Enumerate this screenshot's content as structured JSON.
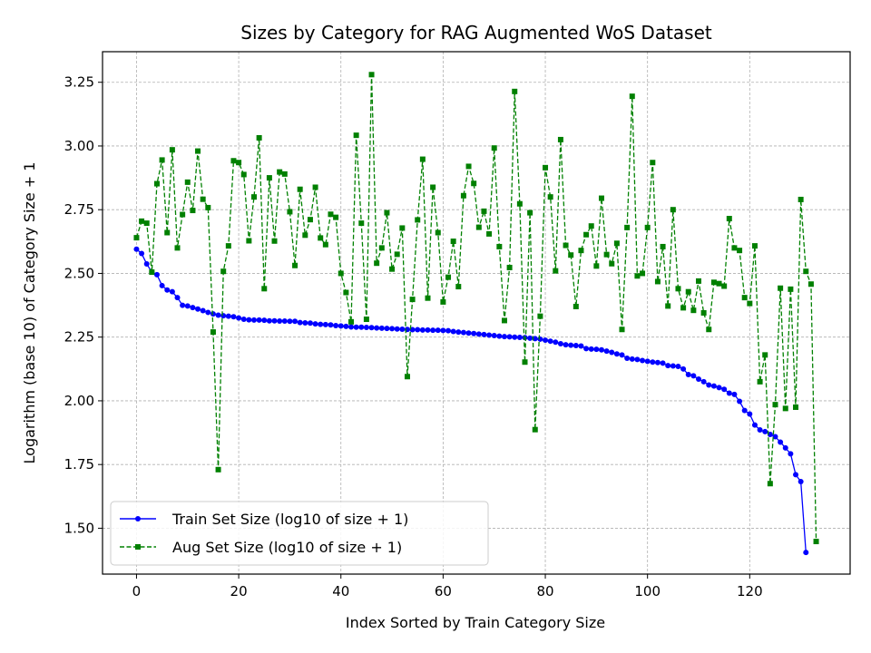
{
  "chart_data": {
    "type": "line",
    "title": "Sizes by Category for RAG Augmented WoS Dataset",
    "xlabel": "Index Sorted by Train Category Size",
    "ylabel": "Logarithm (base 10) of Category Size + 1",
    "xlim": [
      -6.65,
      139.65
    ],
    "ylim": [
      1.32,
      3.37
    ],
    "xticks": [
      0,
      20,
      40,
      60,
      80,
      100,
      120
    ],
    "xtick_labels": [
      "0",
      "20",
      "40",
      "60",
      "80",
      "100",
      "120"
    ],
    "yticks": [
      1.5,
      1.75,
      2.0,
      2.25,
      2.5,
      2.75,
      3.0,
      3.25
    ],
    "ytick_labels": [
      "1.50",
      "1.75",
      "2.00",
      "2.25",
      "2.50",
      "2.75",
      "3.00",
      "3.25"
    ],
    "grid": true,
    "legend_position": "lower-left",
    "series": [
      {
        "name": "Train Set Size (log10 of size + 1)",
        "color": "#0000ff",
        "line_style": "solid",
        "marker": "circle",
        "values": [
          2.595,
          2.578,
          2.537,
          2.505,
          2.495,
          2.452,
          2.435,
          2.428,
          2.405,
          2.375,
          2.372,
          2.366,
          2.36,
          2.354,
          2.347,
          2.341,
          2.336,
          2.334,
          2.332,
          2.33,
          2.325,
          2.32,
          2.318,
          2.317,
          2.317,
          2.316,
          2.314,
          2.314,
          2.313,
          2.313,
          2.312,
          2.312,
          2.307,
          2.306,
          2.305,
          2.302,
          2.3,
          2.299,
          2.298,
          2.295,
          2.294,
          2.292,
          2.29,
          2.289,
          2.289,
          2.288,
          2.287,
          2.286,
          2.285,
          2.284,
          2.283,
          2.282,
          2.281,
          2.28,
          2.279,
          2.279,
          2.278,
          2.278,
          2.277,
          2.277,
          2.276,
          2.275,
          2.272,
          2.27,
          2.268,
          2.266,
          2.264,
          2.262,
          2.26,
          2.258,
          2.256,
          2.254,
          2.252,
          2.251,
          2.25,
          2.249,
          2.248,
          2.246,
          2.244,
          2.242,
          2.238,
          2.234,
          2.23,
          2.224,
          2.22,
          2.218,
          2.217,
          2.215,
          2.205,
          2.203,
          2.202,
          2.2,
          2.195,
          2.19,
          2.184,
          2.18,
          2.167,
          2.164,
          2.162,
          2.158,
          2.155,
          2.152,
          2.15,
          2.148,
          2.138,
          2.137,
          2.135,
          2.125,
          2.103,
          2.098,
          2.085,
          2.075,
          2.062,
          2.058,
          2.052,
          2.045,
          2.03,
          2.025,
          1.998,
          1.962,
          1.948,
          1.905,
          1.886,
          1.879,
          1.868,
          1.859,
          1.838,
          1.815,
          1.792,
          1.71,
          1.683,
          1.405
        ]
      },
      {
        "name": "Aug Set Size (log10 of size + 1)",
        "color": "#008000",
        "line_style": "dashed",
        "marker": "square",
        "values": [
          2.64,
          2.705,
          2.697,
          2.505,
          2.852,
          2.945,
          2.66,
          2.985,
          2.6,
          2.731,
          2.858,
          2.747,
          2.98,
          2.791,
          2.758,
          2.27,
          1.73,
          2.508,
          2.608,
          2.942,
          2.935,
          2.888,
          2.628,
          2.8,
          3.032,
          2.44,
          2.875,
          2.627,
          2.898,
          2.89,
          2.742,
          2.531,
          2.83,
          2.65,
          2.711,
          2.838,
          2.639,
          2.613,
          2.732,
          2.72,
          2.5,
          2.425,
          2.31,
          3.042,
          2.697,
          2.32,
          3.28,
          2.54,
          2.6,
          2.738,
          2.517,
          2.575,
          2.678,
          2.095,
          2.398,
          2.71,
          2.948,
          2.403,
          2.838,
          2.66,
          2.388,
          2.485,
          2.626,
          2.448,
          2.805,
          2.92,
          2.853,
          2.681,
          2.744,
          2.655,
          2.992,
          2.605,
          2.315,
          2.523,
          3.214,
          2.773,
          2.152,
          2.738,
          1.887,
          2.332,
          2.915,
          2.8,
          2.51,
          3.025,
          2.61,
          2.572,
          2.37,
          2.59,
          2.652,
          2.686,
          2.529,
          2.795,
          2.574,
          2.538,
          2.618,
          2.28,
          2.68,
          3.195,
          2.49,
          2.5,
          2.68,
          2.935,
          2.468,
          2.605,
          2.372,
          2.75,
          2.44,
          2.365,
          2.428,
          2.355,
          2.47,
          2.345,
          2.28,
          2.465,
          2.46,
          2.45,
          2.715,
          2.6,
          2.59,
          2.405,
          2.382,
          2.608,
          2.075,
          2.18,
          1.675,
          1.985,
          2.442,
          1.97,
          2.438,
          1.975,
          2.79,
          2.508,
          2.458,
          1.448
        ]
      }
    ]
  }
}
